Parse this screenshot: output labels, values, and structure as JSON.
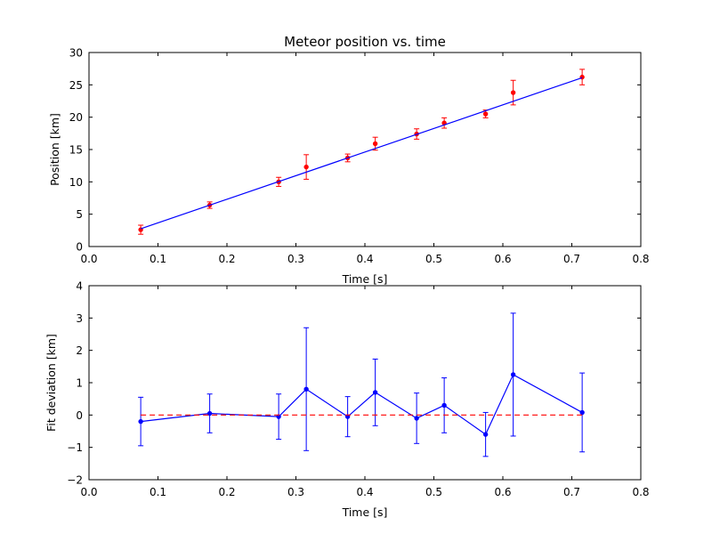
{
  "chart_data": [
    {
      "type": "scatter",
      "title": "Meteor position vs. time",
      "xlabel": "Time [s]",
      "ylabel": "Position [km]",
      "xlim": [
        0.0,
        0.8
      ],
      "ylim": [
        0,
        30
      ],
      "xticks": [
        "0.0",
        "0.1",
        "0.2",
        "0.3",
        "0.4",
        "0.5",
        "0.6",
        "0.7",
        "0.8"
      ],
      "yticks": [
        "0",
        "5",
        "10",
        "15",
        "20",
        "25",
        "30"
      ],
      "grid": false,
      "colors": {
        "data": "#ff0000",
        "fit": "#0000ff"
      },
      "series": [
        {
          "kind": "errorbar-points",
          "x": [
            0.075,
            0.175,
            0.275,
            0.315,
            0.375,
            0.415,
            0.475,
            0.515,
            0.575,
            0.615,
            0.715
          ],
          "y": [
            2.6,
            6.4,
            10.0,
            12.3,
            13.7,
            15.9,
            17.4,
            19.1,
            20.5,
            23.8,
            26.2
          ],
          "yerr": [
            0.7,
            0.5,
            0.7,
            1.9,
            0.6,
            1.0,
            0.8,
            0.8,
            0.6,
            1.9,
            1.2
          ]
        },
        {
          "kind": "fit-line",
          "x": [
            0.075,
            0.715
          ],
          "y": [
            2.75,
            26.1
          ]
        }
      ]
    },
    {
      "type": "line",
      "title": "",
      "xlabel": "Time [s]",
      "ylabel": "Fit deviation [km]",
      "xlim": [
        0.0,
        0.8
      ],
      "ylim": [
        -2,
        4
      ],
      "xticks": [
        "0.0",
        "0.1",
        "0.2",
        "0.3",
        "0.4",
        "0.5",
        "0.6",
        "0.7",
        "0.8"
      ],
      "yticks": [
        "−2",
        "−1",
        "0",
        "1",
        "2",
        "3",
        "4"
      ],
      "grid": false,
      "colors": {
        "data": "#0000ff",
        "reference": "#ff0000"
      },
      "series": [
        {
          "kind": "errorbar-line",
          "x": [
            0.075,
            0.175,
            0.275,
            0.315,
            0.375,
            0.415,
            0.475,
            0.515,
            0.575,
            0.615,
            0.715
          ],
          "y": [
            -0.2,
            0.05,
            -0.05,
            0.8,
            -0.05,
            0.7,
            -0.1,
            0.3,
            -0.6,
            1.25,
            0.08
          ],
          "yerr": [
            0.75,
            0.6,
            0.7,
            1.9,
            0.62,
            1.03,
            0.78,
            0.85,
            0.68,
            1.9,
            1.22
          ]
        },
        {
          "kind": "reference-dashed",
          "x": [
            0.075,
            0.715
          ],
          "y": [
            0,
            0
          ]
        }
      ]
    }
  ]
}
